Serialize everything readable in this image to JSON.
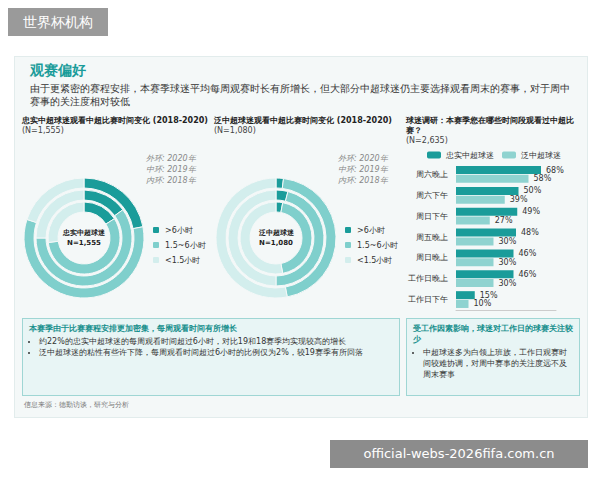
{
  "page": {
    "watermark": "世界杯机构",
    "url": "official-webs-2026fifa.com.cn",
    "title": "观赛偏好",
    "subtitle": "由于更紧密的赛程安排，本赛季球迷平均每周观赛时长有所增长，但大部分中超球迷仍主要选择观看周末的赛事，对于周中赛事的关注度相对较低",
    "boxes": [
      {
        "heading": "本赛季由于比赛赛程安排更加密集，每周观看时间有所增长",
        "bullets": [
          "约22%的忠实中超球迷的每周观看时间超过6小时，对比19和18赛季均实现较高的增长",
          "泛中超球迷的粘性有些许下降，每周观看时间超过6小时的比例仅为2%，较19赛季有所回落"
        ]
      },
      {
        "heading": "受工作因素影响，球迷对工作日的球赛关注较少",
        "bullets": [
          "中超球迷多为白领上班族，工作日观赛时间较难协调，对周中赛事的关注度远不及周末赛事"
        ]
      }
    ],
    "source": "信息来源：德勤访谈，研究与分析"
  },
  "chart_data": [
    {
      "type": "pie",
      "title": "忠实中超球迷观看中超比赛时间变化 (2018-2020)",
      "subtitle": "(N=1,555)",
      "center_label": [
        "忠实中超球迷",
        "N=1,555"
      ],
      "categories": [
        ">6小时",
        "1.5~6小时",
        "<1.5小时"
      ],
      "colors": [
        "#1a9c9a",
        "#7fcfcc",
        "#d3eeed"
      ],
      "series": [
        {
          "name": "外环: 2020年",
          "values": [
            22,
            58,
            20
          ]
        },
        {
          "name": "中环: 2019年",
          "values": [
            15,
            60,
            25
          ]
        },
        {
          "name": "内环: 2018年",
          "values": [
            16,
            57,
            27
          ]
        }
      ],
      "legend": "right"
    },
    {
      "type": "pie",
      "title": "泛中超球迷观看中超比赛时间变化 (2018-2020)",
      "subtitle": "(N=1,080)",
      "center_label": [
        "泛中超球迷",
        "N=1,080"
      ],
      "categories": [
        ">6小时",
        "1.5~6小时",
        "<1.5小时"
      ],
      "colors": [
        "#1a9c9a",
        "#7fcfcc",
        "#d3eeed"
      ],
      "series": [
        {
          "name": "外环: 2020年",
          "values": [
            2,
            45,
            53
          ]
        },
        {
          "name": "中环: 2019年",
          "values": [
            4,
            46,
            50
          ]
        },
        {
          "name": "内环: 2018年",
          "values": [
            3,
            44,
            53
          ]
        }
      ],
      "legend": "right"
    },
    {
      "type": "bar",
      "title": "球迷调研：本赛季您在哪些时间段观看过中超比赛？",
      "subtitle": "(N=2,635)",
      "orientation": "horizontal",
      "categories": [
        "周六晚上",
        "周六下午",
        "周日下午",
        "周五晚上",
        "周日晚上",
        "工作日晚上",
        "工作日下午"
      ],
      "series": [
        {
          "name": "忠实中超球迷",
          "color": "#1a9c9a",
          "values": [
            68,
            50,
            49,
            48,
            46,
            46,
            15
          ],
          "value_labels": [
            "68%",
            "50%",
            "49%",
            "48%",
            "46%",
            "46%",
            "15%"
          ]
        },
        {
          "name": "泛中超球迷",
          "color": "#8fd3d0",
          "values": [
            58,
            39,
            27,
            30,
            30,
            30,
            10
          ],
          "value_labels": [
            "58%",
            "39%",
            "27%",
            "30%",
            "30%",
            "30%",
            "10%"
          ]
        }
      ],
      "xlim": [
        0,
        80
      ],
      "data_labels": true,
      "tick_labels": "y",
      "legend": "top"
    }
  ]
}
